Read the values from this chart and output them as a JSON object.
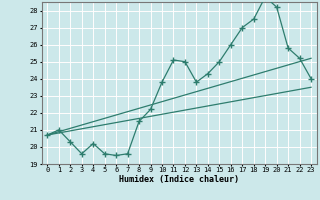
{
  "xlabel": "Humidex (Indice chaleur)",
  "bg_color": "#cce8ea",
  "grid_color_main": "#ffffff",
  "grid_color_minor": "#f0a0a0",
  "line_color": "#2e7d6e",
  "xlim": [
    -0.5,
    23.5
  ],
  "ylim": [
    19,
    28.5
  ],
  "xticks": [
    0,
    1,
    2,
    3,
    4,
    5,
    6,
    7,
    8,
    9,
    10,
    11,
    12,
    13,
    14,
    15,
    16,
    17,
    18,
    19,
    20,
    21,
    22,
    23
  ],
  "yticks": [
    19,
    20,
    21,
    22,
    23,
    24,
    25,
    26,
    27,
    28
  ],
  "series_with_markers": [
    {
      "x": [
        0,
        1,
        2,
        3,
        4,
        5,
        6,
        7,
        8,
        9,
        10,
        11,
        12,
        13,
        14,
        15,
        16,
        17,
        18,
        19,
        20,
        21,
        22,
        23
      ],
      "y": [
        20.7,
        21.0,
        20.3,
        19.6,
        20.2,
        19.6,
        19.5,
        19.6,
        21.5,
        22.2,
        23.8,
        25.1,
        25.0,
        23.8,
        24.3,
        25.0,
        26.0,
        27.0,
        27.5,
        28.8,
        28.2,
        25.8,
        25.2,
        24.0
      ]
    }
  ],
  "series_lines": [
    {
      "x": [
        0,
        23
      ],
      "y": [
        20.7,
        23.5
      ]
    },
    {
      "x": [
        0,
        23
      ],
      "y": [
        20.7,
        25.2
      ]
    }
  ]
}
